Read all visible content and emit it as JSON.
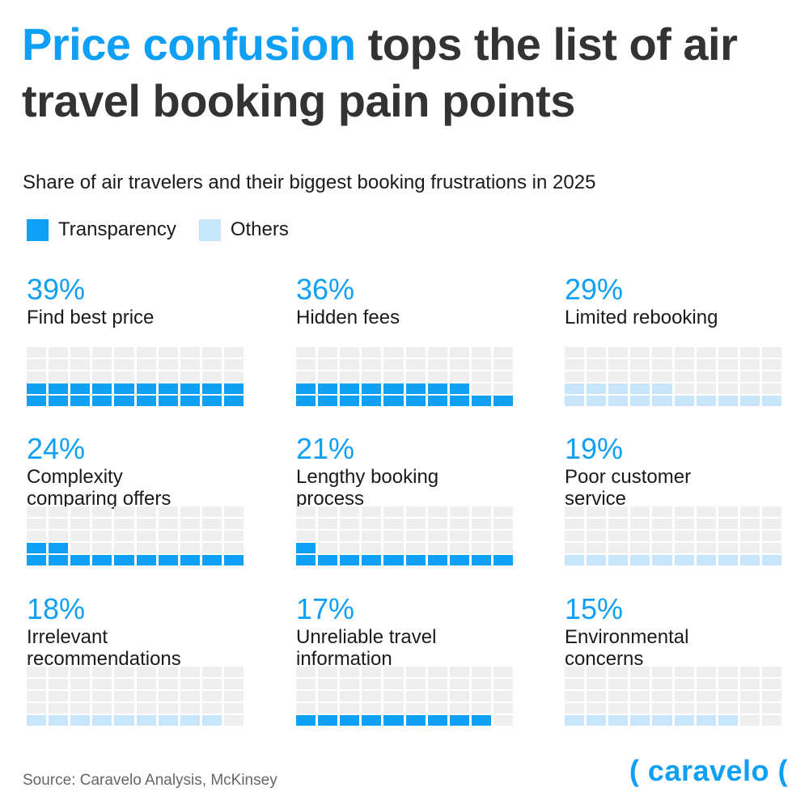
{
  "header": {
    "title_highlight": "Price confusion",
    "title_rest": " tops the list of air travel booking pain points",
    "subtitle": "Share of air travelers and their biggest booking frustrations in 2025"
  },
  "colors": {
    "transparency": "#0fa0f5",
    "others": "#c7e6fb",
    "empty": "#efefef"
  },
  "legend": [
    {
      "label": "Transparency",
      "color_key": "transparency"
    },
    {
      "label": "Others",
      "color_key": "others"
    }
  ],
  "chart_data": {
    "type": "waffle",
    "units": "percent",
    "cells_per_chart": 100,
    "items": [
      {
        "pct_label": "39%",
        "value": 39,
        "label": "Find best price",
        "group": "transparency"
      },
      {
        "pct_label": "36%",
        "value": 36,
        "label": "Hidden fees",
        "group": "transparency"
      },
      {
        "pct_label": "29%",
        "value": 29,
        "label": "Limited rebooking",
        "group": "others"
      },
      {
        "pct_label": "24%",
        "value": 24,
        "label": "Complexity\ncomparing offers",
        "group": "transparency"
      },
      {
        "pct_label": "21%",
        "value": 21,
        "label": "Lengthy booking\nprocess",
        "group": "transparency"
      },
      {
        "pct_label": "19%",
        "value": 19,
        "label": "Poor customer\nservice",
        "group": "others"
      },
      {
        "pct_label": "18%",
        "value": 18,
        "label": "Irrelevant\nrecommendations",
        "group": "others"
      },
      {
        "pct_label": "17%",
        "value": 17,
        "label": "Unreliable travel\ninformation",
        "group": "transparency"
      },
      {
        "pct_label": "15%",
        "value": 15,
        "label": "Environmental\nconcerns",
        "group": "others"
      }
    ]
  },
  "footer": {
    "source": "Source: Caravelo Analysis, McKinsey",
    "brand": "( caravelo ("
  }
}
